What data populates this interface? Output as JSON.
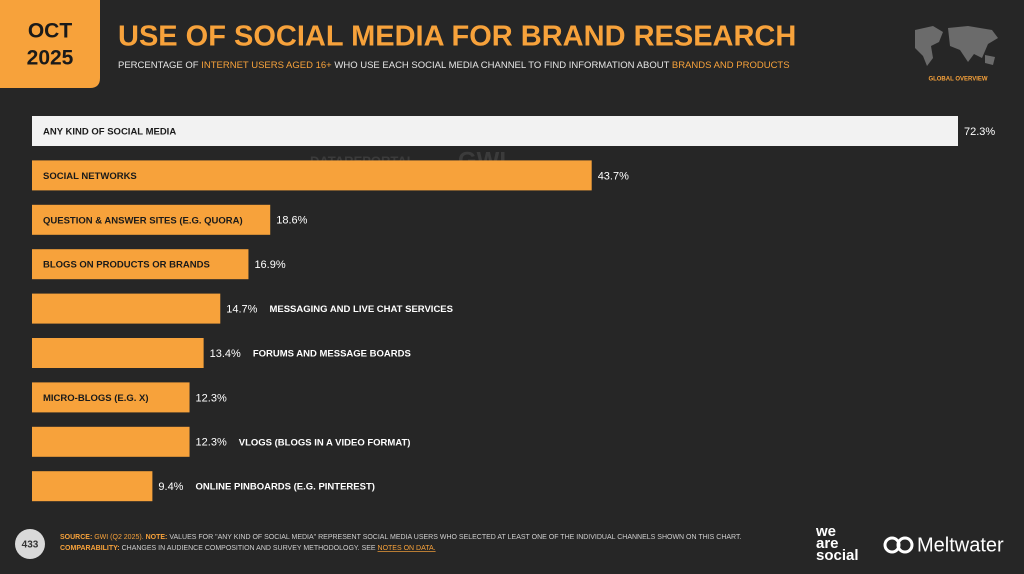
{
  "badge": {
    "month": "OCT",
    "year": "2025",
    "section": "GLOBAL OVERVIEW"
  },
  "watermarks": [
    "DATAREPORTAL",
    "GWI."
  ],
  "chart_data": {
    "type": "bar",
    "orientation": "horizontal",
    "title": "USE OF SOCIAL MEDIA FOR BRAND RESEARCH",
    "subtitle": [
      "PERCENTAGE OF ",
      "INTERNET USERS AGED 16+",
      " WHO USE EACH SOCIAL MEDIA CHANNEL TO FIND INFORMATION ABOUT ",
      "BRANDS AND PRODUCTS"
    ],
    "categories": [
      "ANY KIND OF SOCIAL MEDIA",
      "SOCIAL NETWORKS",
      "QUESTION & ANSWER SITES (E.G. QUORA)",
      "BLOGS ON PRODUCTS OR BRANDS",
      "MESSAGING AND LIVE CHAT SERVICES",
      "FORUMS AND MESSAGE BOARDS",
      "MICRO-BLOGS (E.G. X)",
      "VLOGS (BLOGS IN A VIDEO FORMAT)",
      "ONLINE PINBOARDS (E.G. PINTEREST)"
    ],
    "values": [
      72.3,
      43.7,
      18.6,
      16.9,
      14.7,
      13.4,
      12.3,
      12.3,
      9.4
    ],
    "value_labels": [
      "72.3%",
      "43.7%",
      "18.6%",
      "16.9%",
      "14.7%",
      "13.4%",
      "12.3%",
      "12.3%",
      "9.4%"
    ],
    "colors": [
      "#f2f2f2",
      "#f7a23b",
      "#f7a23b",
      "#f7a23b",
      "#f7a23b",
      "#f7a23b",
      "#f7a23b",
      "#f7a23b",
      "#f7a23b"
    ]
  },
  "footer": {
    "page": "433",
    "source_label": "SOURCE:",
    "source": "GWI (Q2 2025).",
    "note_label": "NOTE:",
    "note": "VALUES FOR \"ANY KIND OF SOCIAL MEDIA\" REPRESENT SOCIAL MEDIA USERS WHO SELECTED AT LEAST ONE OF THE INDIVIDUAL CHANNELS SHOWN ON THIS CHART.",
    "comparability_label": "COMPARABILITY:",
    "comparability": "CHANGES IN AUDIENCE COMPOSITION AND SURVEY METHODOLOGY. SEE",
    "link": "NOTES ON DATA."
  },
  "logos": [
    [
      "we",
      "are",
      "social"
    ],
    "Meltwater"
  ]
}
